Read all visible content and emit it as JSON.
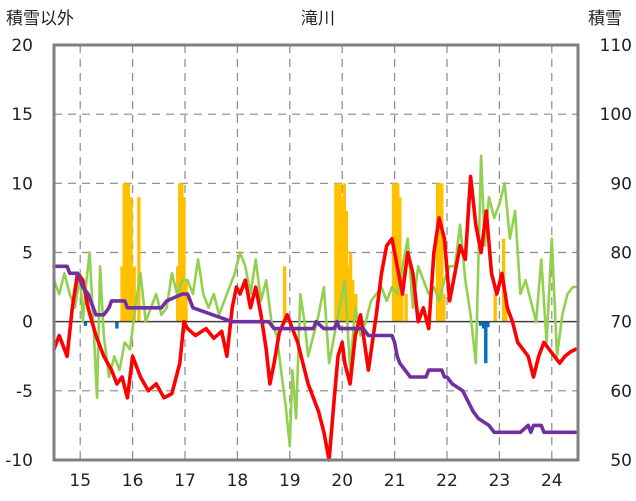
{
  "chart_data": {
    "type": "line",
    "title": "滝川",
    "left_axis_label": "積雪以外",
    "right_axis_label": "積雪",
    "ylim_left": [
      -10,
      20
    ],
    "ylim_right": [
      50,
      110
    ],
    "yticks_left": [
      "20",
      "15",
      "10",
      "5",
      "0",
      "-5",
      "-10"
    ],
    "yticks_right": [
      "110",
      "100",
      "90",
      "80",
      "70",
      "60",
      "50"
    ],
    "x_range": [
      14.5,
      24.5
    ],
    "x_ticks": [
      "15",
      "16",
      "17",
      "18",
      "19",
      "20",
      "21",
      "22",
      "23",
      "24"
    ],
    "grid": true,
    "colors": {
      "temperature": "#ff0000",
      "wind": "#92d050",
      "snow_depth": "#7030a0",
      "snowfall": "#ffc000",
      "precip_neg": "#0070c0",
      "frame": "#808080",
      "zero": "#404040"
    },
    "series": [
      {
        "key": "temperature",
        "axis": "left",
        "x": [
          14.5,
          14.6,
          14.75,
          14.85,
          14.95,
          15.05,
          15.15,
          15.3,
          15.45,
          15.6,
          15.7,
          15.8,
          15.9,
          16.0,
          16.15,
          16.3,
          16.45,
          16.6,
          16.75,
          16.9,
          16.98,
          17.05,
          17.2,
          17.4,
          17.55,
          17.7,
          17.8,
          17.9,
          17.98,
          18.05,
          18.15,
          18.25,
          18.35,
          18.45,
          18.55,
          18.62,
          18.7,
          18.8,
          18.95,
          19.05,
          19.15,
          19.25,
          19.35,
          19.45,
          19.55,
          19.65,
          19.75,
          19.85,
          19.92,
          20.0,
          20.05,
          20.15,
          20.25,
          20.35,
          20.5,
          20.65,
          20.75,
          20.85,
          20.95,
          21.05,
          21.15,
          21.25,
          21.35,
          21.45,
          21.55,
          21.65,
          21.75,
          21.85,
          21.95,
          22.05,
          22.15,
          22.25,
          22.35,
          22.45,
          22.55,
          22.65,
          22.75,
          22.85,
          22.95,
          23.05,
          23.15,
          23.25,
          23.35,
          23.45,
          23.55,
          23.65,
          23.75,
          23.85,
          23.95,
          24.05,
          24.15,
          24.25,
          24.35,
          24.45
        ],
        "y": [
          -2,
          -1,
          -2.5,
          1,
          3.5,
          3,
          1,
          -1,
          -2.5,
          -3.5,
          -4.5,
          -4,
          -5.5,
          -2.5,
          -4,
          -5,
          -4.5,
          -5.5,
          -5.2,
          -3,
          0,
          -0.5,
          -1,
          -0.5,
          -1.2,
          -0.7,
          -2.5,
          1,
          2.5,
          2,
          3,
          1,
          2.5,
          0.5,
          -2,
          -4.5,
          -3,
          -0.8,
          0.5,
          -0.5,
          -1.5,
          -3,
          -4.5,
          -5.5,
          -6.5,
          -8,
          -10,
          -5.5,
          -2.5,
          -1.5,
          -3,
          -4.5,
          -1,
          0.5,
          -3.5,
          0.5,
          3.5,
          5.5,
          6,
          4,
          2,
          5,
          3.5,
          0,
          1,
          -0.5,
          5,
          7.5,
          6,
          1.5,
          3.5,
          5.5,
          4.5,
          10.5,
          7,
          5,
          8,
          3.5,
          2,
          3.5,
          1,
          0,
          -1.5,
          -2,
          -2.5,
          -4,
          -2.5,
          -1.5,
          -2,
          -2.5,
          -3,
          -2.5,
          -2.2,
          -2
        ]
      },
      {
        "key": "wind",
        "axis": "left",
        "x": [
          14.5,
          14.6,
          14.7,
          14.8,
          14.9,
          15.0,
          15.05,
          15.12,
          15.18,
          15.25,
          15.32,
          15.38,
          15.45,
          15.55,
          15.65,
          15.75,
          15.85,
          15.95,
          16.05,
          16.15,
          16.25,
          16.35,
          16.45,
          16.55,
          16.65,
          16.75,
          16.85,
          16.95,
          17.05,
          17.15,
          17.25,
          17.35,
          17.45,
          17.55,
          17.65,
          17.75,
          17.85,
          17.95,
          18.05,
          18.15,
          18.25,
          18.35,
          18.45,
          18.55,
          18.65,
          18.75,
          18.85,
          18.92,
          19.0,
          19.05,
          19.12,
          19.2,
          19.28,
          19.35,
          19.45,
          19.55,
          19.65,
          19.75,
          19.85,
          19.95,
          20.05,
          20.15,
          20.25,
          20.35,
          20.45,
          20.55,
          20.65,
          20.75,
          20.85,
          20.95,
          21.05,
          21.15,
          21.25,
          21.35,
          21.45,
          21.55,
          21.65,
          21.75,
          21.85,
          21.95,
          22.05,
          22.15,
          22.25,
          22.35,
          22.45,
          22.55,
          22.65,
          22.72,
          22.8,
          22.9,
          23.0,
          23.1,
          23.2,
          23.3,
          23.4,
          23.5,
          23.6,
          23.7,
          23.8,
          23.9,
          24.0,
          24.1,
          24.2,
          24.3,
          24.4,
          24.45
        ],
        "y": [
          3,
          2,
          3.5,
          2,
          1,
          3.5,
          0,
          3,
          5,
          0,
          -5.5,
          4,
          -1,
          -4,
          -2.5,
          -3.5,
          -1.5,
          -2,
          1,
          3.5,
          0,
          1,
          2,
          0.5,
          1,
          3.5,
          2,
          3,
          3,
          2,
          4.5,
          2,
          1,
          2,
          0.5,
          1.5,
          2.5,
          3.5,
          5,
          4,
          2,
          4.5,
          1.5,
          3,
          0,
          -1,
          -4,
          -6,
          -9,
          -3.5,
          -7,
          2,
          0,
          -2.5,
          -1,
          0.5,
          2.5,
          -3,
          -1,
          1,
          3,
          -3.5,
          1,
          -1,
          0,
          1.5,
          2,
          2.5,
          1.5,
          2.5,
          2,
          4,
          6,
          1,
          4,
          3,
          2,
          2.5,
          1.5,
          3,
          4,
          4,
          7,
          3,
          0.5,
          -3,
          12,
          5.5,
          9,
          7.5,
          8.5,
          10,
          6,
          8,
          2,
          3,
          1.5,
          0,
          4.5,
          -1.5,
          6,
          -2.5,
          0.5,
          2,
          2.5,
          2.5
        ]
      },
      {
        "key": "snow_depth",
        "axis": "right",
        "x": [
          14.5,
          14.75,
          14.8,
          14.95,
          15.05,
          15.15,
          15.3,
          15.45,
          15.55,
          15.6,
          15.85,
          15.9,
          16.05,
          16.55,
          16.65,
          16.95,
          17.05,
          17.15,
          17.9,
          17.95,
          18.05,
          18.6,
          18.7,
          19.4,
          19.45,
          19.5,
          19.65,
          19.85,
          19.9,
          19.95,
          20.4,
          20.5,
          20.95,
          21.0,
          21.05,
          21.1,
          21.2,
          21.3,
          21.6,
          21.65,
          21.9,
          21.95,
          22.0,
          22.1,
          22.3,
          22.5,
          22.6,
          22.8,
          22.9,
          23.4,
          23.55,
          23.6,
          23.65,
          23.8,
          23.85,
          24.45
        ],
        "y": [
          78,
          78,
          77,
          77,
          75,
          74,
          71,
          71,
          72,
          73,
          73,
          72,
          72,
          72,
          73,
          74,
          74,
          72,
          70,
          70,
          70,
          70,
          69,
          69,
          69,
          70,
          69,
          69,
          70,
          69,
          69,
          68,
          68,
          67,
          65,
          64,
          63,
          62,
          62,
          63,
          63,
          62,
          62,
          61,
          60,
          57,
          56,
          55,
          54,
          54,
          55,
          54,
          55,
          55,
          54,
          54
        ]
      }
    ],
    "bars": {
      "key": "snowfall",
      "axis": "left",
      "x": [
        15.8,
        15.84,
        15.88,
        15.92,
        15.97,
        16.03,
        16.12,
        16.86,
        16.9,
        16.94,
        16.98,
        17.02,
        18.9,
        19.88,
        19.92,
        19.96,
        20.0,
        20.04,
        20.08,
        20.12,
        20.16,
        20.2,
        20.26,
        20.98,
        21.02,
        21.06,
        21.1,
        21.14,
        21.22,
        21.82,
        21.86,
        21.9,
        21.94,
        22.92,
        23.08,
        23.12
      ],
      "y": [
        4,
        10,
        10,
        10,
        9,
        4,
        9,
        4,
        10,
        10,
        9,
        3,
        4,
        10,
        10,
        10,
        9,
        10,
        8,
        4,
        5,
        3,
        2,
        10,
        10,
        10,
        9,
        4,
        2,
        10,
        10,
        10,
        2,
        2,
        6,
        2
      ]
    },
    "bars_negative": {
      "key": "precip_neg",
      "axis": "left",
      "x": [
        15.1,
        15.7,
        22.64,
        22.7,
        22.74,
        22.78
      ],
      "y": [
        -0.3,
        -0.5,
        -0.3,
        -0.5,
        -3,
        -0.4
      ]
    }
  }
}
